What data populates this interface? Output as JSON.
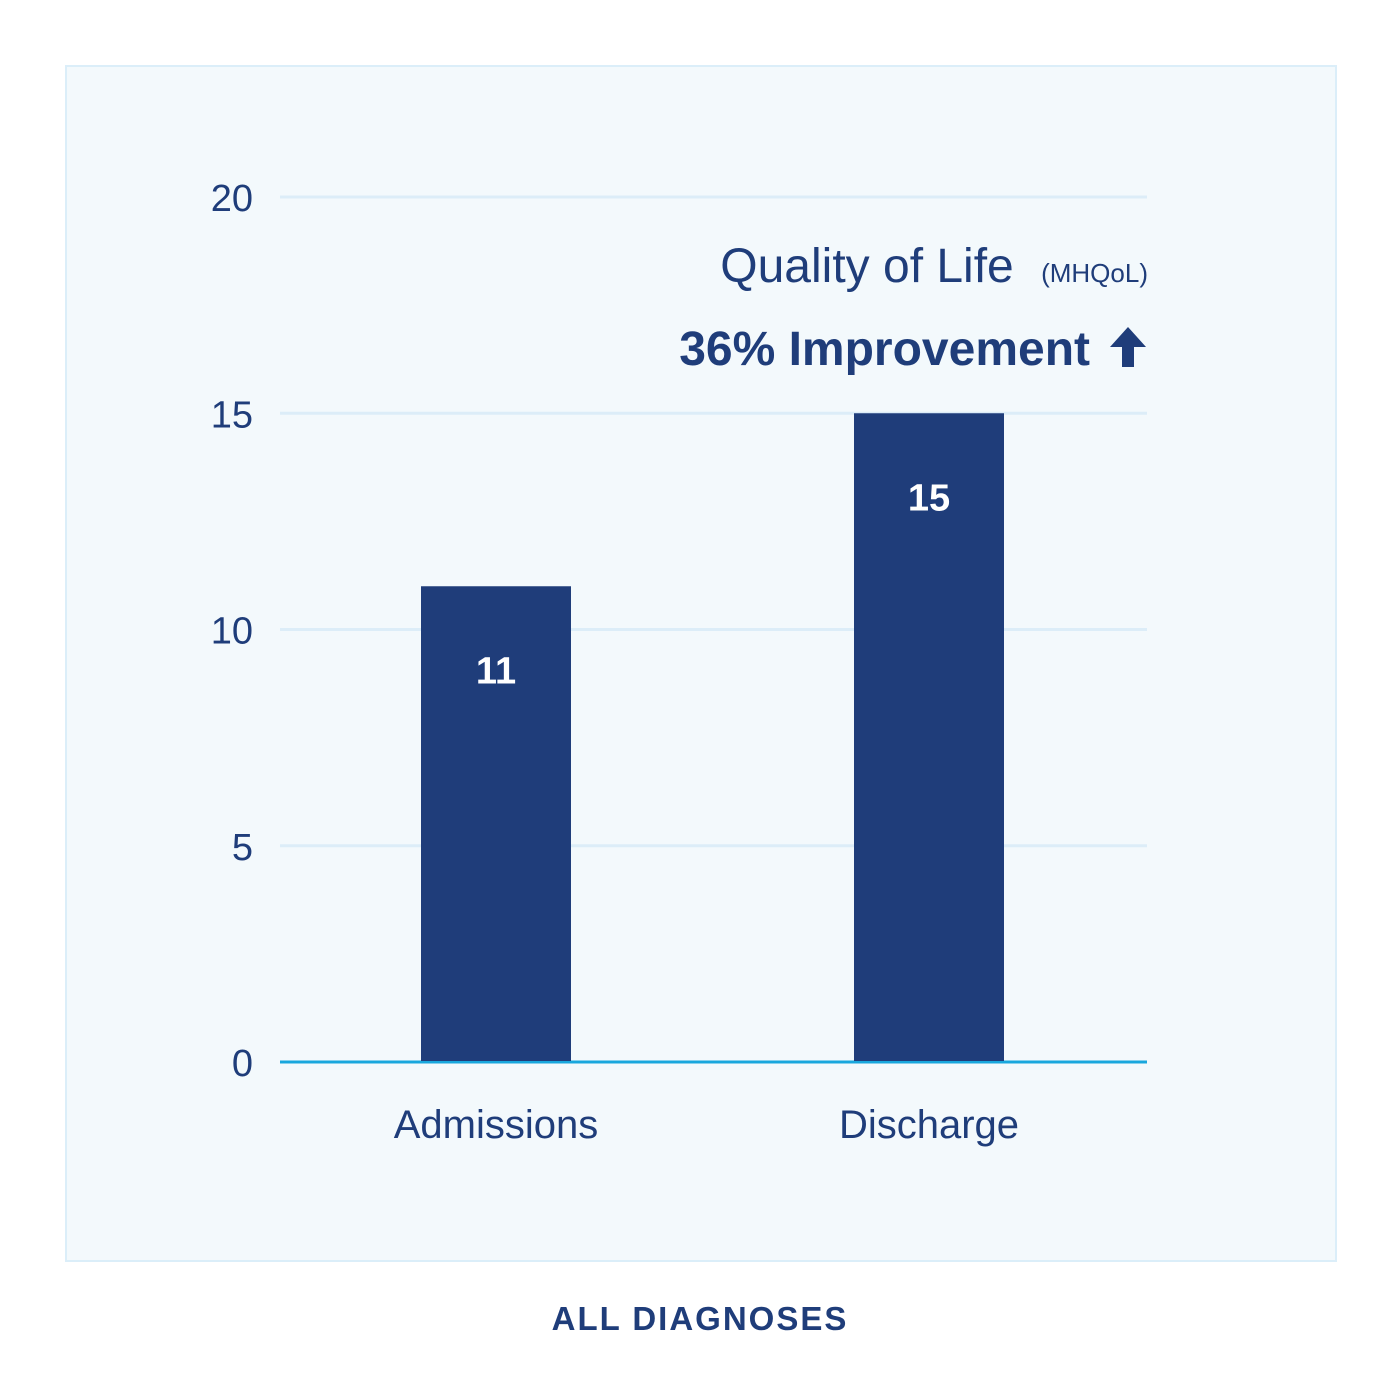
{
  "chart_data": {
    "type": "bar",
    "categories": [
      "Admissions",
      "Discharge"
    ],
    "values": [
      11,
      15
    ],
    "data_labels": [
      "11",
      "15"
    ],
    "ylim": [
      0,
      20
    ],
    "yticks": [
      0,
      5,
      10,
      15,
      20
    ],
    "ytick_labels": [
      "0",
      "5",
      "10",
      "15",
      "20"
    ],
    "grid": true,
    "title": "Quality of Life",
    "title_suffix": "(MHQoL)",
    "subtitle": "36% Improvement",
    "subtitle_icon": "arrow-up-icon",
    "xlabel": "",
    "ylabel": ""
  },
  "caption": "ALL DIAGNOSES",
  "colors": {
    "bar": "#1f3d7a",
    "text": "#1f3d7a",
    "grid": "#dcedf8",
    "baseline": "#19a7dd",
    "panel": "#f3f9fc",
    "bar_label": "#ffffff"
  }
}
